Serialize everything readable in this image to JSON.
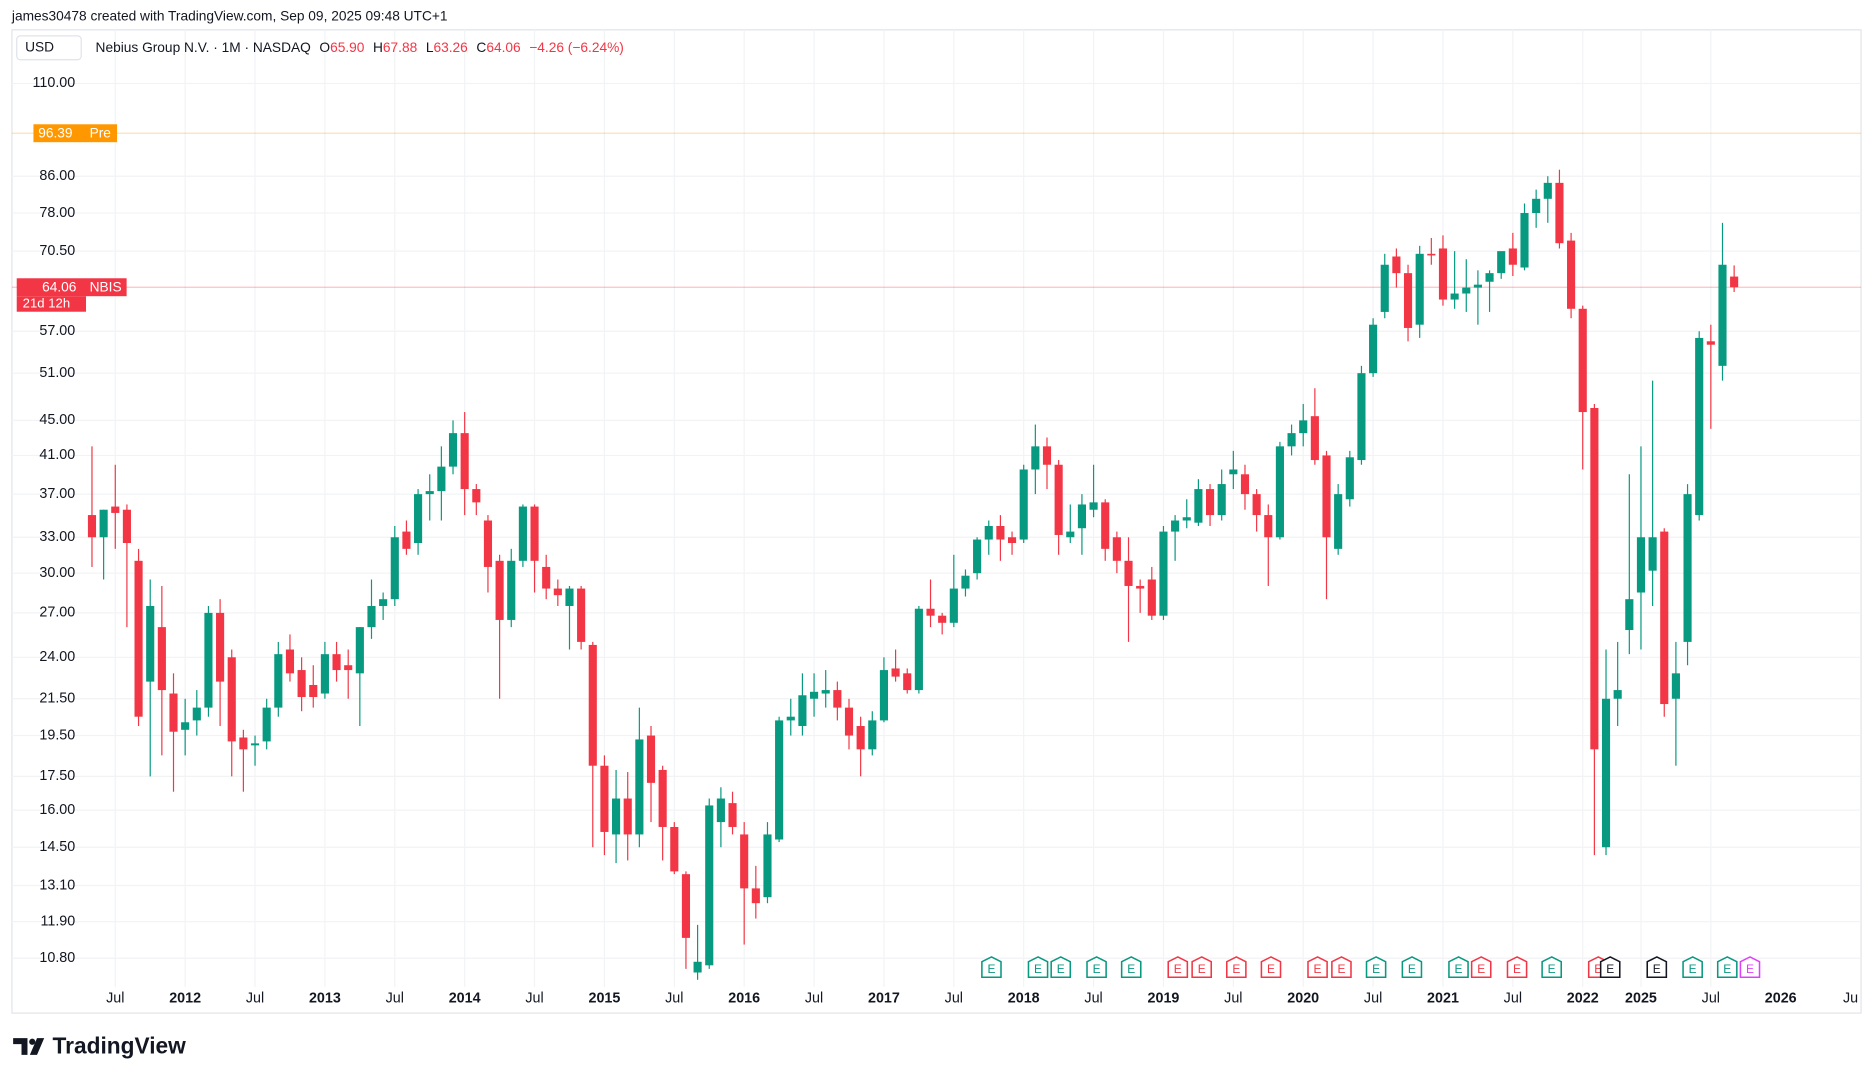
{
  "chart_data": {
    "type": "candlestick",
    "credit": "james30478 created with TradingView.com, Sep 09, 2025 09:48 UTC+1",
    "currency": "USD",
    "symbol_title": "Nebius Group N.V. · 1M · NASDAQ",
    "ohlc_header": {
      "o_key": "O",
      "o": "65.90",
      "h_key": "H",
      "h": "67.88",
      "l_key": "L",
      "l": "63.26",
      "c_key": "C",
      "c": "64.06",
      "change": "−4.26 (−6.24%)"
    },
    "brand": "TradingView",
    "earnings_label": "E",
    "log_scale": true,
    "grid": true,
    "up_color": "#089981",
    "down_color": "#f23645",
    "ylim": [
      10.14,
      115.3
    ],
    "yticks": [
      {
        "value": 110,
        "label": "110.00"
      },
      {
        "value": 86,
        "label": "86.00"
      },
      {
        "value": 78,
        "label": "78.00"
      },
      {
        "value": 70.5,
        "label": "70.50"
      },
      {
        "value": 57,
        "label": "57.00"
      },
      {
        "value": 51,
        "label": "51.00"
      },
      {
        "value": 45,
        "label": "45.00"
      },
      {
        "value": 41,
        "label": "41.00"
      },
      {
        "value": 37,
        "label": "37.00"
      },
      {
        "value": 33,
        "label": "33.00"
      },
      {
        "value": 30,
        "label": "30.00"
      },
      {
        "value": 27,
        "label": "27.00"
      },
      {
        "value": 24,
        "label": "24.00"
      },
      {
        "value": 21.5,
        "label": "21.50"
      },
      {
        "value": 19.5,
        "label": "19.50"
      },
      {
        "value": 17.5,
        "label": "17.50"
      },
      {
        "value": 16,
        "label": "16.00"
      },
      {
        "value": 14.5,
        "label": "14.50"
      },
      {
        "value": 13.1,
        "label": "13.10"
      },
      {
        "value": 11.9,
        "label": "11.90"
      },
      {
        "value": 10.8,
        "label": "10.80"
      }
    ],
    "price_lines": [
      {
        "value": 96.39,
        "label": "96.39",
        "tag": "Pre",
        "color": "#ff9800"
      },
      {
        "value": 64.06,
        "label": "64.06",
        "tag": "NBIS",
        "countdown": "21d 12h",
        "color": "#f23645"
      }
    ],
    "future_labels": [
      "2026",
      "Ju"
    ],
    "categories": [
      null,
      null,
      "Jul",
      null,
      null,
      null,
      null,
      null,
      "2012",
      null,
      null,
      null,
      null,
      null,
      "Jul",
      null,
      null,
      null,
      null,
      null,
      "2013",
      null,
      null,
      null,
      null,
      null,
      "Jul",
      null,
      null,
      null,
      null,
      null,
      "2014",
      null,
      null,
      null,
      null,
      null,
      "Jul",
      null,
      null,
      null,
      null,
      null,
      "2015",
      null,
      null,
      null,
      null,
      null,
      "Jul",
      null,
      null,
      null,
      null,
      null,
      "2016",
      null,
      null,
      null,
      null,
      null,
      "Jul",
      null,
      null,
      null,
      null,
      null,
      "2017",
      null,
      null,
      null,
      null,
      null,
      "Jul",
      null,
      null,
      null,
      null,
      null,
      "2018",
      null,
      null,
      null,
      null,
      null,
      "Jul",
      null,
      null,
      null,
      null,
      null,
      "2019",
      null,
      null,
      null,
      null,
      null,
      "Jul",
      null,
      null,
      null,
      null,
      null,
      "2020",
      null,
      null,
      null,
      null,
      null,
      "Jul",
      null,
      null,
      null,
      null,
      null,
      "2021",
      null,
      null,
      null,
      null,
      null,
      "Jul",
      null,
      null,
      null,
      null,
      null,
      "2022",
      null,
      null,
      null,
      null,
      "2025",
      null,
      null,
      null,
      null,
      null,
      "Jul",
      null,
      null
    ],
    "open": [
      35,
      33,
      35.8,
      35.5,
      31,
      22.5,
      26,
      21.8,
      19.8,
      20.3,
      21,
      27,
      24,
      19.4,
      19,
      19.2,
      21,
      24.5,
      23.2,
      22.3,
      21.8,
      24.2,
      23.5,
      23,
      26,
      27.5,
      28,
      33.5,
      32.5,
      37,
      37.3,
      39.8,
      43.5,
      37.5,
      34.5,
      31,
      26.5,
      31,
      35.8,
      30.5,
      28.8,
      27.5,
      28.8,
      24.8,
      18,
      15,
      16.5,
      15,
      19.5,
      17.8,
      15.3,
      13.5,
      10.4,
      10.6,
      15.5,
      16.3,
      15,
      13,
      12.7,
      14.8,
      20.3,
      20,
      21.5,
      21.8,
      22,
      21,
      20,
      18.8,
      20.3,
      23.3,
      23,
      22,
      27.3,
      26.8,
      26.3,
      28.8,
      30,
      32.8,
      34,
      33,
      32.8,
      39.5,
      42,
      40,
      33,
      33.8,
      35.5,
      36.2,
      33,
      31,
      29,
      29.5,
      26.8,
      33.5,
      34.5,
      34.3,
      37.5,
      35,
      39,
      39,
      37,
      35,
      33,
      42,
      43.5,
      45.5,
      41,
      32,
      36.5,
      40.5,
      51,
      60,
      69.5,
      66.5,
      58,
      70,
      71,
      62,
      63,
      64,
      65,
      66.5,
      71,
      67.5,
      78,
      81,
      84.5,
      72.5,
      60.5,
      46.5,
      14.5,
      21.5,
      25.8,
      28.5,
      30.2,
      33.5,
      21.5,
      25,
      35,
      55.5,
      52,
      65.9
    ],
    "high": [
      42,
      35.5,
      40,
      36,
      32,
      29.5,
      29,
      23,
      21.5,
      22,
      27.5,
      28,
      24.5,
      19.8,
      19.5,
      21.5,
      25,
      25.5,
      24,
      23.5,
      25,
      25,
      24.5,
      26,
      29.5,
      28.5,
      34,
      34.5,
      37.5,
      39,
      42,
      45,
      46,
      38,
      35,
      31.5,
      32,
      36,
      36,
      31.5,
      29.5,
      29,
      29,
      25,
      18.5,
      17.8,
      17.7,
      21,
      20,
      18,
      15.5,
      13.6,
      11.8,
      16.5,
      17,
      16.8,
      15.5,
      13.8,
      15.5,
      20.5,
      21.5,
      23,
      23,
      23.2,
      22.5,
      21.5,
      20.5,
      20.8,
      24,
      24.5,
      23.3,
      27.5,
      29.5,
      27,
      31.5,
      30.3,
      33,
      34.5,
      35,
      33.5,
      40,
      44.5,
      43,
      40.5,
      36,
      37,
      40,
      36.5,
      33.5,
      33,
      29.5,
      30.5,
      34,
      35,
      36.5,
      38.5,
      38,
      39.5,
      41.5,
      40,
      37.5,
      36,
      42.5,
      44.5,
      47,
      49,
      41.5,
      38,
      41.5,
      52,
      59,
      70,
      71,
      68,
      71.5,
      73,
      73.5,
      70.5,
      69,
      67,
      67,
      70,
      74,
      80,
      83,
      86,
      87.5,
      74,
      61,
      47,
      24.5,
      25,
      39,
      42,
      50,
      33.8,
      25,
      38,
      57,
      58,
      76,
      67.88
    ],
    "low": [
      30.5,
      29.5,
      32,
      26,
      20,
      17.5,
      18.5,
      16.8,
      18.5,
      19.5,
      20.5,
      20,
      17.5,
      16.8,
      18,
      18.8,
      20.5,
      22.5,
      20.8,
      21,
      21.5,
      22.5,
      21.5,
      20,
      25.2,
      26.5,
      27.5,
      31.5,
      31.5,
      34.5,
      34.5,
      39,
      35,
      35,
      28.5,
      21.5,
      26,
      30.5,
      28.5,
      28,
      27.5,
      24.5,
      24.5,
      14.5,
      14.2,
      13.9,
      14,
      14.5,
      15.5,
      14,
      13.5,
      10.5,
      10.2,
      10.5,
      14.5,
      15,
      11.2,
      12,
      12.5,
      14.7,
      19.5,
      19.5,
      20.5,
      21,
      20.3,
      18.8,
      17.5,
      18.5,
      20.2,
      22.5,
      21.8,
      21.8,
      26,
      25.5,
      26,
      28.2,
      29.5,
      31.5,
      31,
      31.5,
      32.5,
      37,
      37.5,
      31.5,
      32.5,
      31.5,
      34.8,
      31,
      30,
      25,
      27,
      26.5,
      26.5,
      31,
      33.8,
      34,
      34,
      34.5,
      37.5,
      35.5,
      33.5,
      29,
      32.8,
      41,
      42,
      40,
      28,
      31.5,
      35.8,
      40,
      50.5,
      59,
      64,
      55.5,
      56,
      68,
      61,
      60.5,
      60,
      58,
      60,
      65.5,
      66,
      67,
      75,
      76,
      71,
      59,
      39.5,
      14.2,
      14.2,
      20,
      24.2,
      24.5,
      27.5,
      20.5,
      18,
      23.5,
      34.5,
      44,
      50,
      63.26
    ],
    "close": [
      33,
      35.5,
      35.2,
      32.5,
      20.5,
      27.5,
      22,
      19.7,
      20.2,
      21,
      27,
      22.5,
      19.2,
      18.8,
      19.1,
      21,
      24.2,
      23,
      21.6,
      21.6,
      24.2,
      23.2,
      23.2,
      26,
      27.5,
      28,
      33,
      32,
      37,
      37.3,
      39.8,
      43.5,
      37.5,
      36.2,
      30.5,
      26.5,
      31,
      35.8,
      31,
      28.8,
      28.3,
      28.8,
      25,
      18,
      15.1,
      16.5,
      15,
      19.3,
      17.2,
      15.3,
      13.6,
      11.4,
      10.7,
      16.2,
      16.5,
      15.3,
      13,
      12.5,
      15,
      20.3,
      20.5,
      21.7,
      21.9,
      22,
      21,
      19.5,
      18.8,
      20.3,
      23.2,
      22.8,
      22,
      27.3,
      26.8,
      26.3,
      28.8,
      29.8,
      32.8,
      34,
      32.8,
      32.5,
      39.5,
      42,
      40,
      33.2,
      33.5,
      36,
      36.2,
      32,
      31,
      29,
      28.8,
      26.8,
      33.5,
      34.5,
      34.8,
      37.5,
      35,
      38,
      39.5,
      37,
      35,
      33,
      42,
      43.5,
      45,
      40.5,
      33,
      37,
      40.8,
      51,
      58,
      68,
      66.5,
      57.5,
      70,
      69.7,
      62,
      63,
      64,
      64.5,
      66.5,
      70.5,
      68,
      78,
      81,
      84.5,
      72,
      60.5,
      46,
      18.8,
      21.5,
      22,
      28,
      33,
      33,
      21.2,
      23,
      37,
      56,
      55,
      68,
      64.06
    ]
  }
}
